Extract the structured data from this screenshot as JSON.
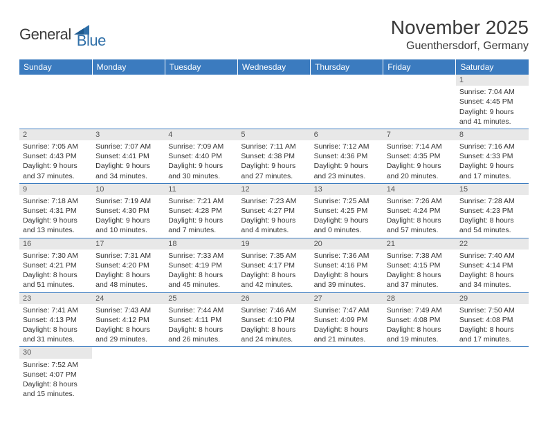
{
  "logo": {
    "part1": "General",
    "part2": "Blue"
  },
  "title": "November 2025",
  "location": "Guenthersdorf, Germany",
  "colors": {
    "header_bg": "#3b7bbf",
    "header_text": "#ffffff",
    "daynum_bg": "#e8e8e8",
    "border": "#3b7bbf",
    "logo_blue": "#2f6fa8",
    "text": "#3a3a3a"
  },
  "weekdays": [
    "Sunday",
    "Monday",
    "Tuesday",
    "Wednesday",
    "Thursday",
    "Friday",
    "Saturday"
  ],
  "weeks": [
    [
      null,
      null,
      null,
      null,
      null,
      null,
      {
        "n": "1",
        "sunrise": "7:04 AM",
        "sunset": "4:45 PM",
        "dl": "9 hours and 41 minutes."
      }
    ],
    [
      {
        "n": "2",
        "sunrise": "7:05 AM",
        "sunset": "4:43 PM",
        "dl": "9 hours and 37 minutes."
      },
      {
        "n": "3",
        "sunrise": "7:07 AM",
        "sunset": "4:41 PM",
        "dl": "9 hours and 34 minutes."
      },
      {
        "n": "4",
        "sunrise": "7:09 AM",
        "sunset": "4:40 PM",
        "dl": "9 hours and 30 minutes."
      },
      {
        "n": "5",
        "sunrise": "7:11 AM",
        "sunset": "4:38 PM",
        "dl": "9 hours and 27 minutes."
      },
      {
        "n": "6",
        "sunrise": "7:12 AM",
        "sunset": "4:36 PM",
        "dl": "9 hours and 23 minutes."
      },
      {
        "n": "7",
        "sunrise": "7:14 AM",
        "sunset": "4:35 PM",
        "dl": "9 hours and 20 minutes."
      },
      {
        "n": "8",
        "sunrise": "7:16 AM",
        "sunset": "4:33 PM",
        "dl": "9 hours and 17 minutes."
      }
    ],
    [
      {
        "n": "9",
        "sunrise": "7:18 AM",
        "sunset": "4:31 PM",
        "dl": "9 hours and 13 minutes."
      },
      {
        "n": "10",
        "sunrise": "7:19 AM",
        "sunset": "4:30 PM",
        "dl": "9 hours and 10 minutes."
      },
      {
        "n": "11",
        "sunrise": "7:21 AM",
        "sunset": "4:28 PM",
        "dl": "9 hours and 7 minutes."
      },
      {
        "n": "12",
        "sunrise": "7:23 AM",
        "sunset": "4:27 PM",
        "dl": "9 hours and 4 minutes."
      },
      {
        "n": "13",
        "sunrise": "7:25 AM",
        "sunset": "4:25 PM",
        "dl": "9 hours and 0 minutes."
      },
      {
        "n": "14",
        "sunrise": "7:26 AM",
        "sunset": "4:24 PM",
        "dl": "8 hours and 57 minutes."
      },
      {
        "n": "15",
        "sunrise": "7:28 AM",
        "sunset": "4:23 PM",
        "dl": "8 hours and 54 minutes."
      }
    ],
    [
      {
        "n": "16",
        "sunrise": "7:30 AM",
        "sunset": "4:21 PM",
        "dl": "8 hours and 51 minutes."
      },
      {
        "n": "17",
        "sunrise": "7:31 AM",
        "sunset": "4:20 PM",
        "dl": "8 hours and 48 minutes."
      },
      {
        "n": "18",
        "sunrise": "7:33 AM",
        "sunset": "4:19 PM",
        "dl": "8 hours and 45 minutes."
      },
      {
        "n": "19",
        "sunrise": "7:35 AM",
        "sunset": "4:17 PM",
        "dl": "8 hours and 42 minutes."
      },
      {
        "n": "20",
        "sunrise": "7:36 AM",
        "sunset": "4:16 PM",
        "dl": "8 hours and 39 minutes."
      },
      {
        "n": "21",
        "sunrise": "7:38 AM",
        "sunset": "4:15 PM",
        "dl": "8 hours and 37 minutes."
      },
      {
        "n": "22",
        "sunrise": "7:40 AM",
        "sunset": "4:14 PM",
        "dl": "8 hours and 34 minutes."
      }
    ],
    [
      {
        "n": "23",
        "sunrise": "7:41 AM",
        "sunset": "4:13 PM",
        "dl": "8 hours and 31 minutes."
      },
      {
        "n": "24",
        "sunrise": "7:43 AM",
        "sunset": "4:12 PM",
        "dl": "8 hours and 29 minutes."
      },
      {
        "n": "25",
        "sunrise": "7:44 AM",
        "sunset": "4:11 PM",
        "dl": "8 hours and 26 minutes."
      },
      {
        "n": "26",
        "sunrise": "7:46 AM",
        "sunset": "4:10 PM",
        "dl": "8 hours and 24 minutes."
      },
      {
        "n": "27",
        "sunrise": "7:47 AM",
        "sunset": "4:09 PM",
        "dl": "8 hours and 21 minutes."
      },
      {
        "n": "28",
        "sunrise": "7:49 AM",
        "sunset": "4:08 PM",
        "dl": "8 hours and 19 minutes."
      },
      {
        "n": "29",
        "sunrise": "7:50 AM",
        "sunset": "4:08 PM",
        "dl": "8 hours and 17 minutes."
      }
    ],
    [
      {
        "n": "30",
        "sunrise": "7:52 AM",
        "sunset": "4:07 PM",
        "dl": "8 hours and 15 minutes."
      },
      null,
      null,
      null,
      null,
      null,
      null
    ]
  ]
}
